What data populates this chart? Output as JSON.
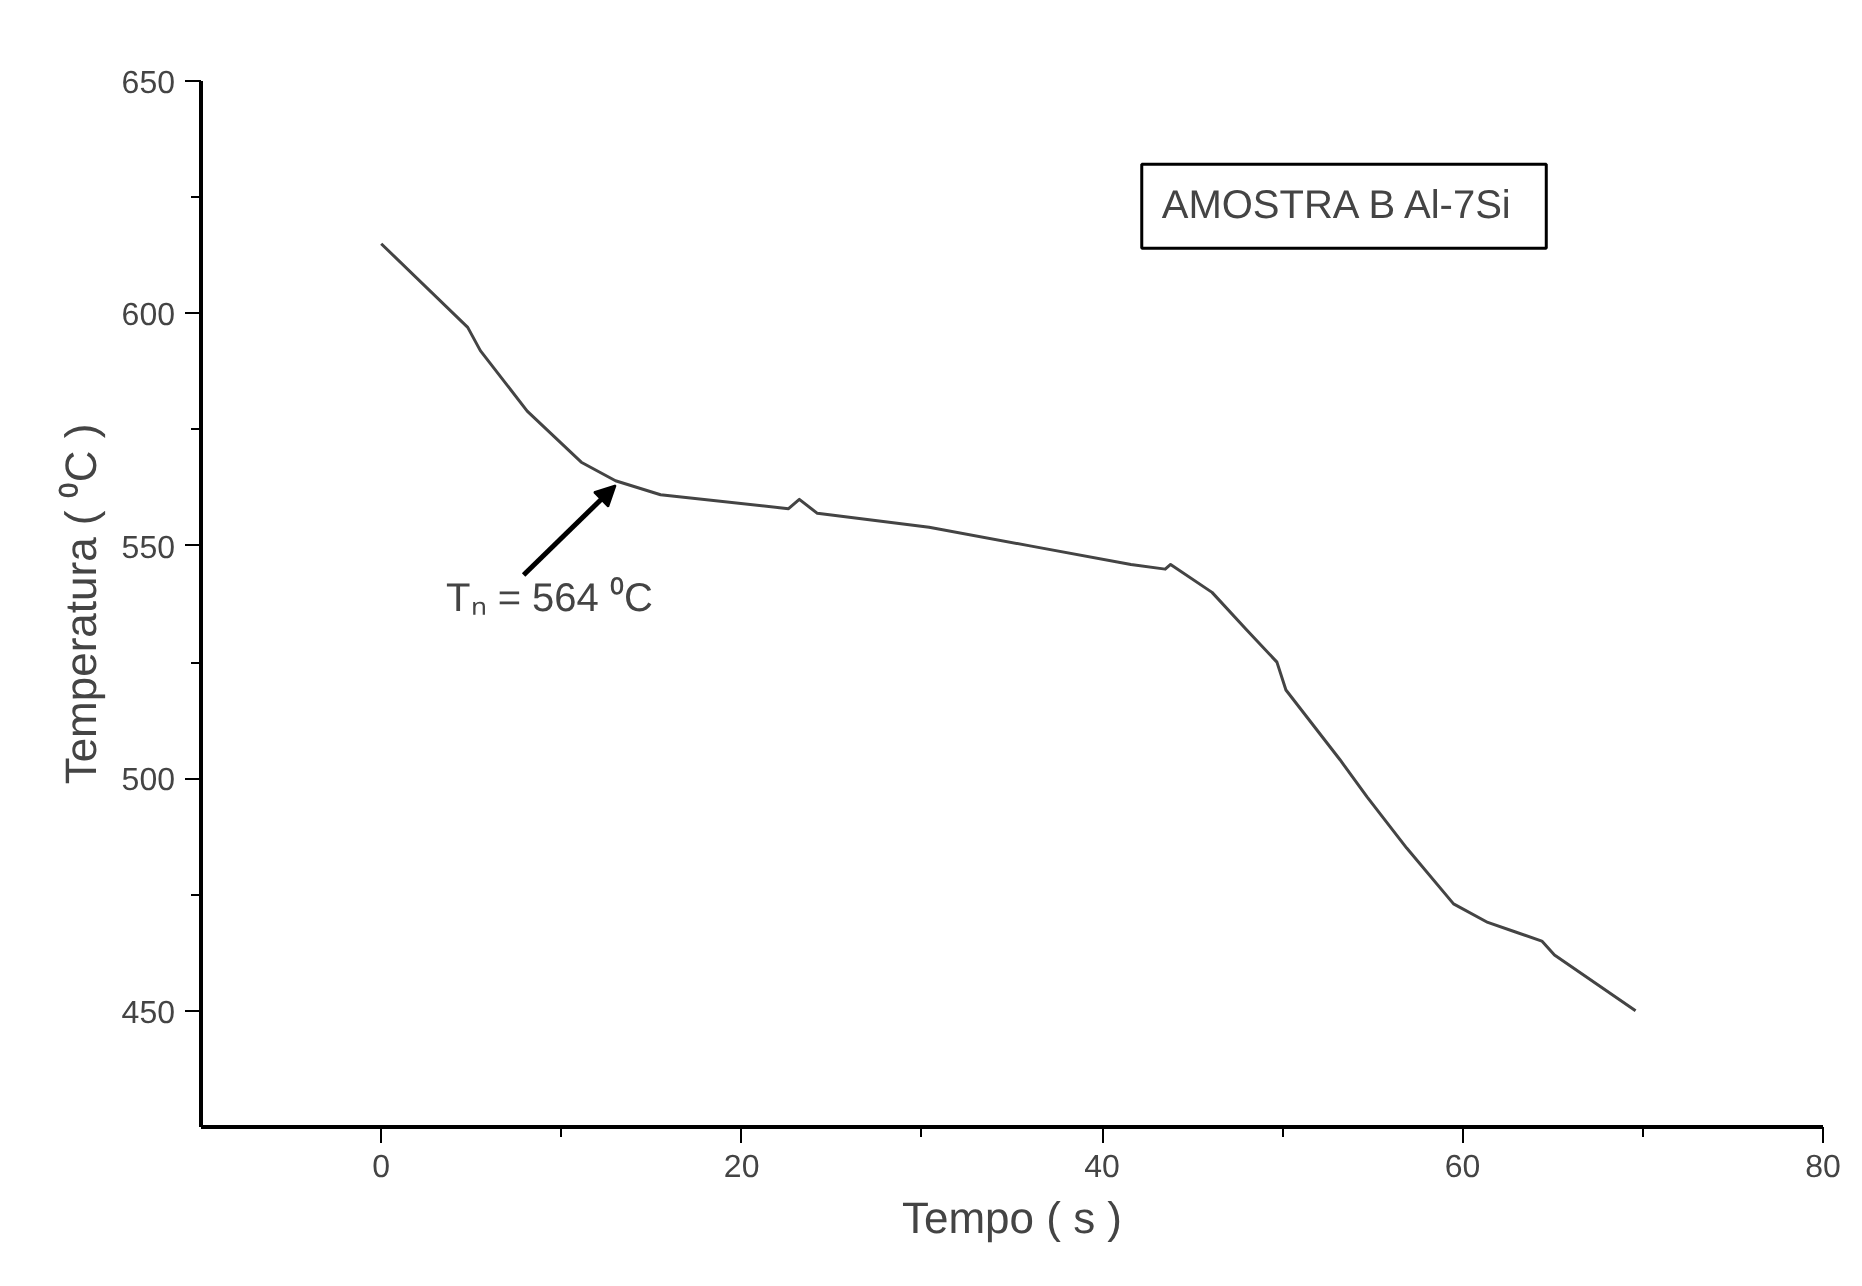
{
  "chart_data": {
    "type": "line",
    "xlabel": "Tempo ( s )",
    "ylabel": "Temperatura ( ⁰C )",
    "x": [
      0,
      4.8,
      5.5,
      8.1,
      11.1,
      13,
      15.5,
      22.6,
      23.2,
      24.2,
      30.4,
      36,
      41.6,
      43.5,
      43.8,
      46.1,
      48,
      49.7,
      50.2,
      53.2,
      54.7,
      56.9,
      59.5,
      61.4,
      62.9,
      64.4,
      65.1,
      69.6
    ],
    "series": [
      {
        "color": "#444444",
        "values": [
          615,
          597,
          592,
          579,
          568,
          564,
          561,
          558,
          560,
          557,
          554,
          550,
          546,
          545,
          546,
          540,
          532,
          525,
          519,
          504,
          496,
          485,
          473,
          469,
          467,
          465,
          462,
          450
        ]
      }
    ],
    "xlim": [
      -10,
      80
    ],
    "ylim": [
      425,
      650
    ],
    "xticks": [
      0,
      {
        "value": 10,
        "label": null
      },
      20,
      {
        "value": 30,
        "label": null
      },
      40,
      {
        "value": 50,
        "label": null
      },
      60,
      {
        "value": 70,
        "label": null
      },
      80
    ],
    "yticks": [
      450,
      {
        "value": 475,
        "label": null
      },
      500,
      {
        "value": 525,
        "label": null
      },
      550,
      {
        "value": 575,
        "label": null
      },
      600,
      {
        "value": 625,
        "label": null
      },
      650
    ],
    "annotations": [
      "AMOSTRA  B Al-7Si",
      {
        "text": "Tₙ = 564 ⁰C",
        "x": 13,
        "y": 564
      }
    ],
    "grid": false,
    "marker": "none",
    "line_style": "solid"
  }
}
